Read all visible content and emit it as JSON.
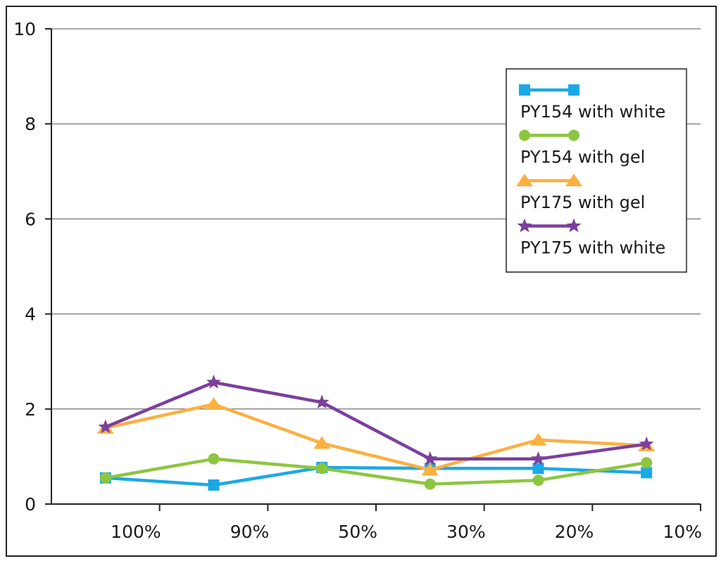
{
  "chart_data": {
    "type": "line",
    "categories": [
      "100%",
      "90%",
      "50%",
      "30%",
      "20%",
      "10%"
    ],
    "ylim": [
      0,
      10
    ],
    "yticks": [
      "0",
      "2",
      "4",
      "6",
      "8",
      "10"
    ],
    "grid": true,
    "legend_placement": "top-right",
    "series": [
      {
        "name": "PY154 with white",
        "color": "#1ba9e6",
        "marker": "square",
        "values": [
          0.55,
          0.4,
          0.77,
          0.75,
          0.75,
          0.66
        ]
      },
      {
        "name": "PY154 with gel",
        "color": "#8cc63f",
        "marker": "circle",
        "values": [
          0.55,
          0.95,
          0.75,
          0.42,
          0.5,
          0.87
        ]
      },
      {
        "name": "PY175 with gel",
        "color": "#fbb040",
        "marker": "triangle",
        "values": [
          1.6,
          2.1,
          1.28,
          0.72,
          1.35,
          1.23
        ]
      },
      {
        "name": "PY175 with white",
        "color": "#7b3f9d",
        "marker": "star",
        "values": [
          1.62,
          2.56,
          2.14,
          0.95,
          0.95,
          1.26
        ]
      }
    ]
  }
}
